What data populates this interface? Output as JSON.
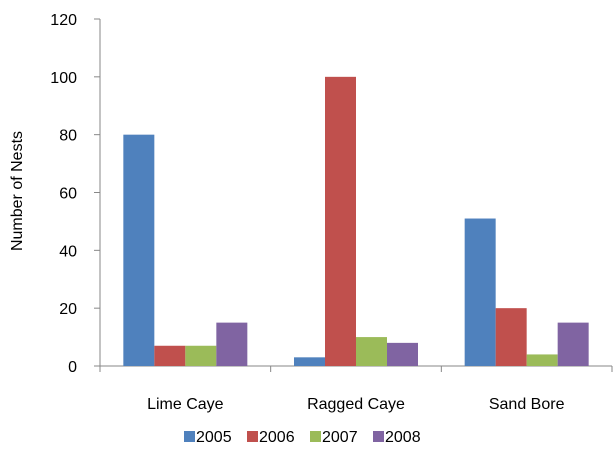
{
  "chart_data": {
    "type": "bar",
    "title": "",
    "xlabel": "",
    "ylabel": "Number of Nests",
    "ylim": [
      0,
      120
    ],
    "yticks": [
      0,
      20,
      40,
      60,
      80,
      100,
      120
    ],
    "grid": false,
    "legend_position": "bottom",
    "categories": [
      "Lime Caye",
      "Ragged Caye",
      "Sand Bore"
    ],
    "series": [
      {
        "name": "2005",
        "color": "#4F81BD",
        "values": [
          80,
          3,
          51
        ]
      },
      {
        "name": "2006",
        "color": "#C0504D",
        "values": [
          7,
          100,
          20
        ]
      },
      {
        "name": "2007",
        "color": "#9BBB59",
        "values": [
          7,
          10,
          4
        ]
      },
      {
        "name": "2008",
        "color": "#8064A2",
        "values": [
          15,
          8,
          15
        ]
      }
    ]
  }
}
